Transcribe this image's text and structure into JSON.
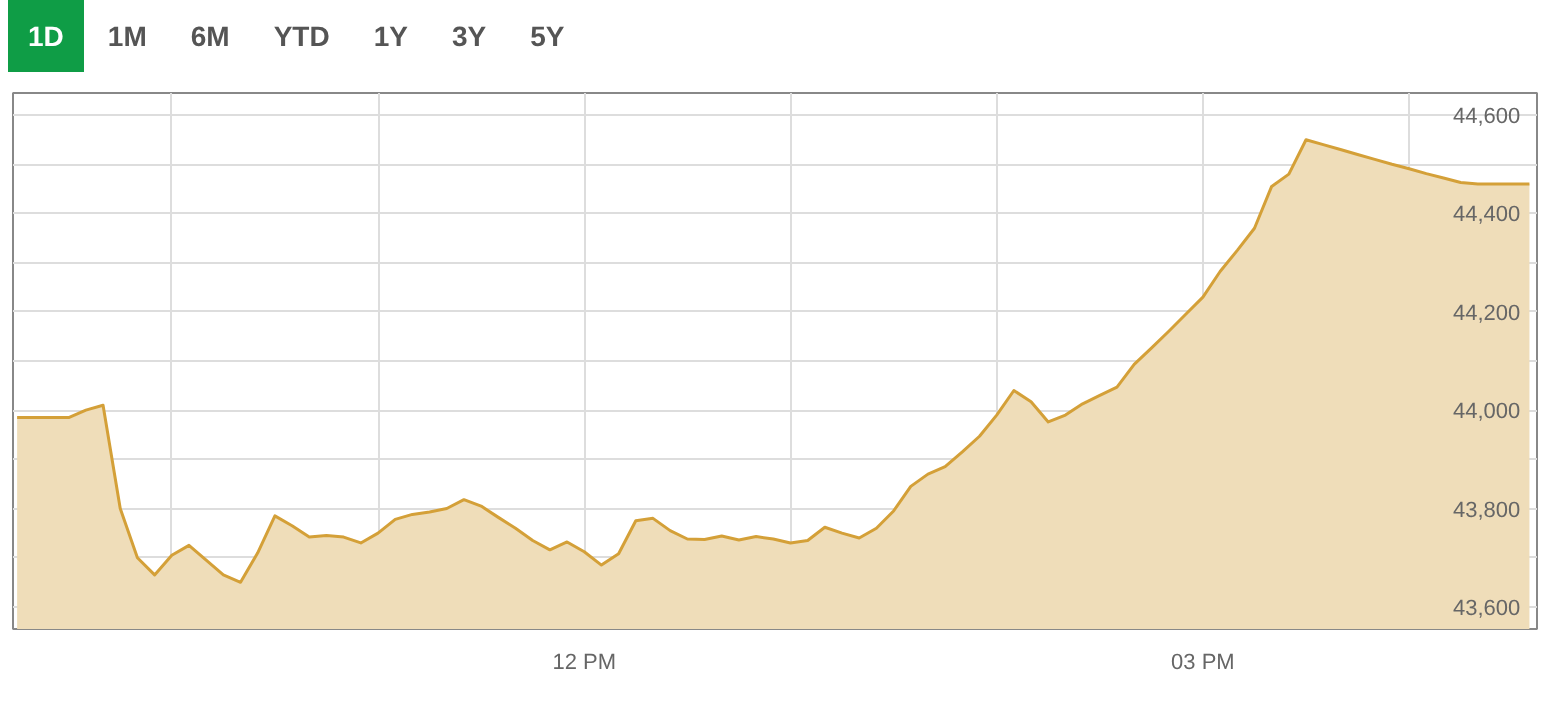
{
  "chart_data": {
    "type": "area",
    "annotations": [
      "1D",
      "1M",
      "6M",
      "YTD",
      "1Y",
      "3Y",
      "5Y"
    ],
    "categories": [
      null,
      null,
      null,
      null,
      null,
      null,
      null,
      null,
      null,
      null,
      null,
      null,
      null,
      null,
      null,
      null,
      null,
      null,
      null,
      null,
      null,
      null,
      null,
      null,
      null,
      null,
      null,
      null,
      null,
      null,
      null,
      null,
      null,
      "12 PM",
      null,
      null,
      null,
      null,
      null,
      null,
      null,
      null,
      null,
      null,
      null,
      null,
      null,
      null,
      null,
      null,
      null,
      null,
      null,
      null,
      null,
      null,
      null,
      null,
      null,
      null,
      null,
      null,
      null,
      null,
      null,
      null,
      null,
      null,
      null,
      "03 PM",
      null,
      null,
      null,
      null,
      null,
      null,
      null,
      null,
      null,
      null,
      null,
      null,
      null,
      null,
      null,
      null,
      null,
      null,
      null
    ],
    "series": [
      {
        "color": "#d4a038",
        "values": [
          43985,
          43985,
          43985,
          43985,
          44000,
          44010,
          43800,
          43700,
          43665,
          43705,
          43725,
          43695,
          43665,
          43650,
          43710,
          43785,
          43765,
          43742,
          43745,
          43742,
          43730,
          43750,
          43778,
          43788,
          43793,
          43800,
          43818,
          43805,
          43782,
          43760,
          43735,
          43716,
          43732,
          43712,
          43685,
          43708,
          43775,
          43780,
          43755,
          43738,
          43737,
          43744,
          43736,
          43743,
          43738,
          43730,
          43735,
          43762,
          43750,
          43740,
          43760,
          43795,
          43845,
          43870,
          43885,
          43915,
          43947,
          43990,
          44040,
          44017,
          43976,
          43990,
          44013,
          44030,
          44047,
          44093,
          44126,
          44160,
          44195,
          44230,
          44282,
          44325,
          44370,
          44455,
          44480,
          44550,
          44540,
          44530,
          44520,
          44510,
          44500,
          44491,
          44481,
          44472,
          44463,
          44460,
          44460,
          44460,
          44460
        ]
      }
    ],
    "ylim": [
      43555,
      44645
    ],
    "yticks": [
      {
        "value": 43600,
        "label": "43,600"
      },
      {
        "value": 43700,
        "label": null
      },
      {
        "value": 43800,
        "label": "43,800"
      },
      {
        "value": 43900,
        "label": null
      },
      {
        "value": 44000,
        "label": "44,000"
      },
      {
        "value": 44100,
        "label": null
      },
      {
        "value": 44200,
        "label": "44,200"
      },
      {
        "value": 44300,
        "label": null
      },
      {
        "value": 44400,
        "label": "44,400"
      },
      {
        "value": 44500,
        "label": null
      },
      {
        "value": 44600,
        "label": "44,600"
      }
    ],
    "grid": true
  }
}
